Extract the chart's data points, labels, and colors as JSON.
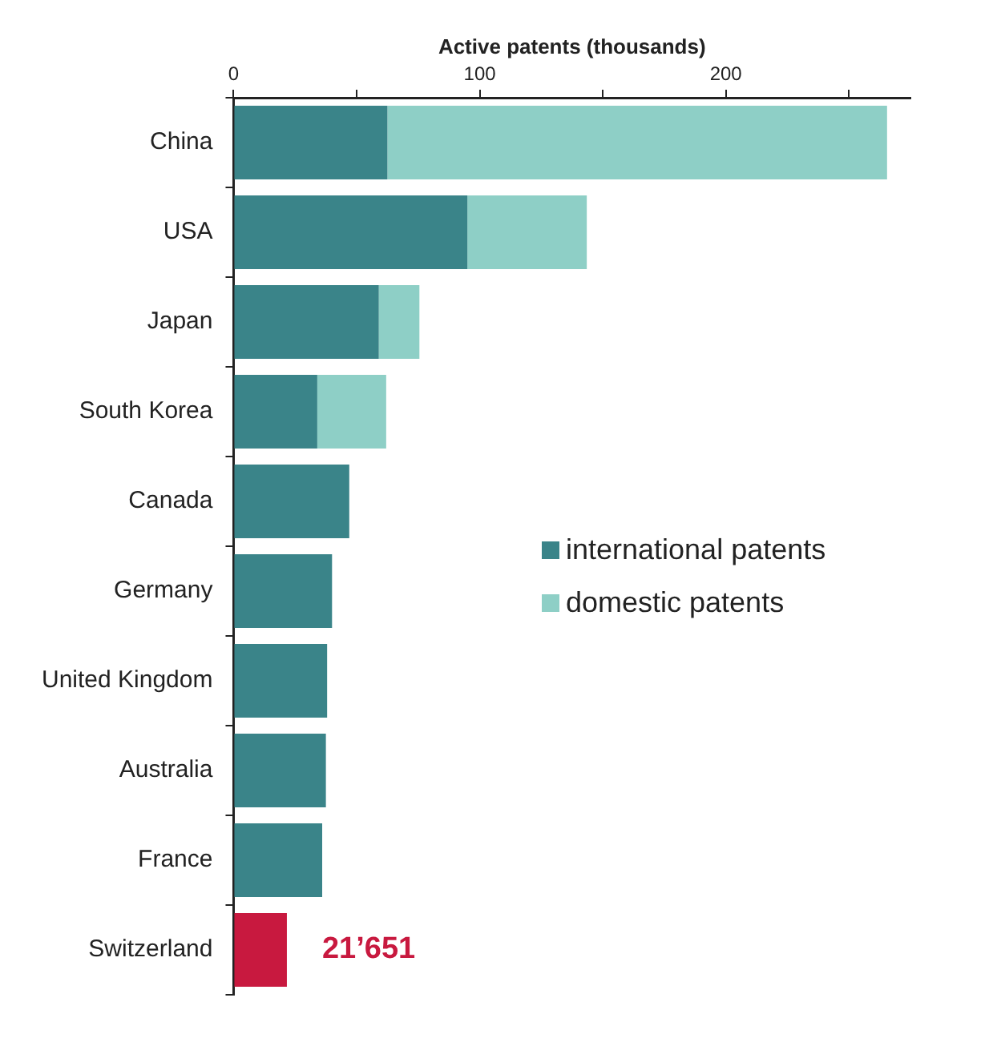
{
  "chart_data": {
    "type": "bar",
    "orientation": "horizontal",
    "stacked": true,
    "xlabel": "Active patents (thousands)",
    "categories": [
      "China",
      "USA",
      "Japan",
      "South Korea",
      "Canada",
      "Germany",
      "United Kingdom",
      "Australia",
      "France",
      "Switzerland"
    ],
    "series": [
      {
        "name": "international patents",
        "color": "#3a8489",
        "colors": [
          "#3a8489",
          "#3a8489",
          "#3a8489",
          "#3a8489",
          "#3a8489",
          "#3a8489",
          "#3a8489",
          "#3a8489",
          "#3a8489",
          "#c8193f"
        ],
        "values": [
          62.5,
          95,
          59,
          34,
          47,
          40,
          38,
          37.5,
          36,
          21.651
        ]
      },
      {
        "name": "domestic patents",
        "color": "#8ecfc6",
        "values": [
          203,
          48.5,
          16.5,
          28,
          null,
          null,
          null,
          null,
          null,
          null
        ]
      }
    ],
    "xlim": [
      0,
      275
    ],
    "xticks": [
      0,
      {
        "value": 50,
        "label": null
      },
      100,
      {
        "value": 150,
        "label": null
      },
      200,
      {
        "value": 250,
        "label": null
      }
    ],
    "annotations": [
      {
        "text": "21’651",
        "x": 21.651,
        "y": "Switzerland"
      }
    ],
    "grid": false,
    "legend": "right"
  }
}
